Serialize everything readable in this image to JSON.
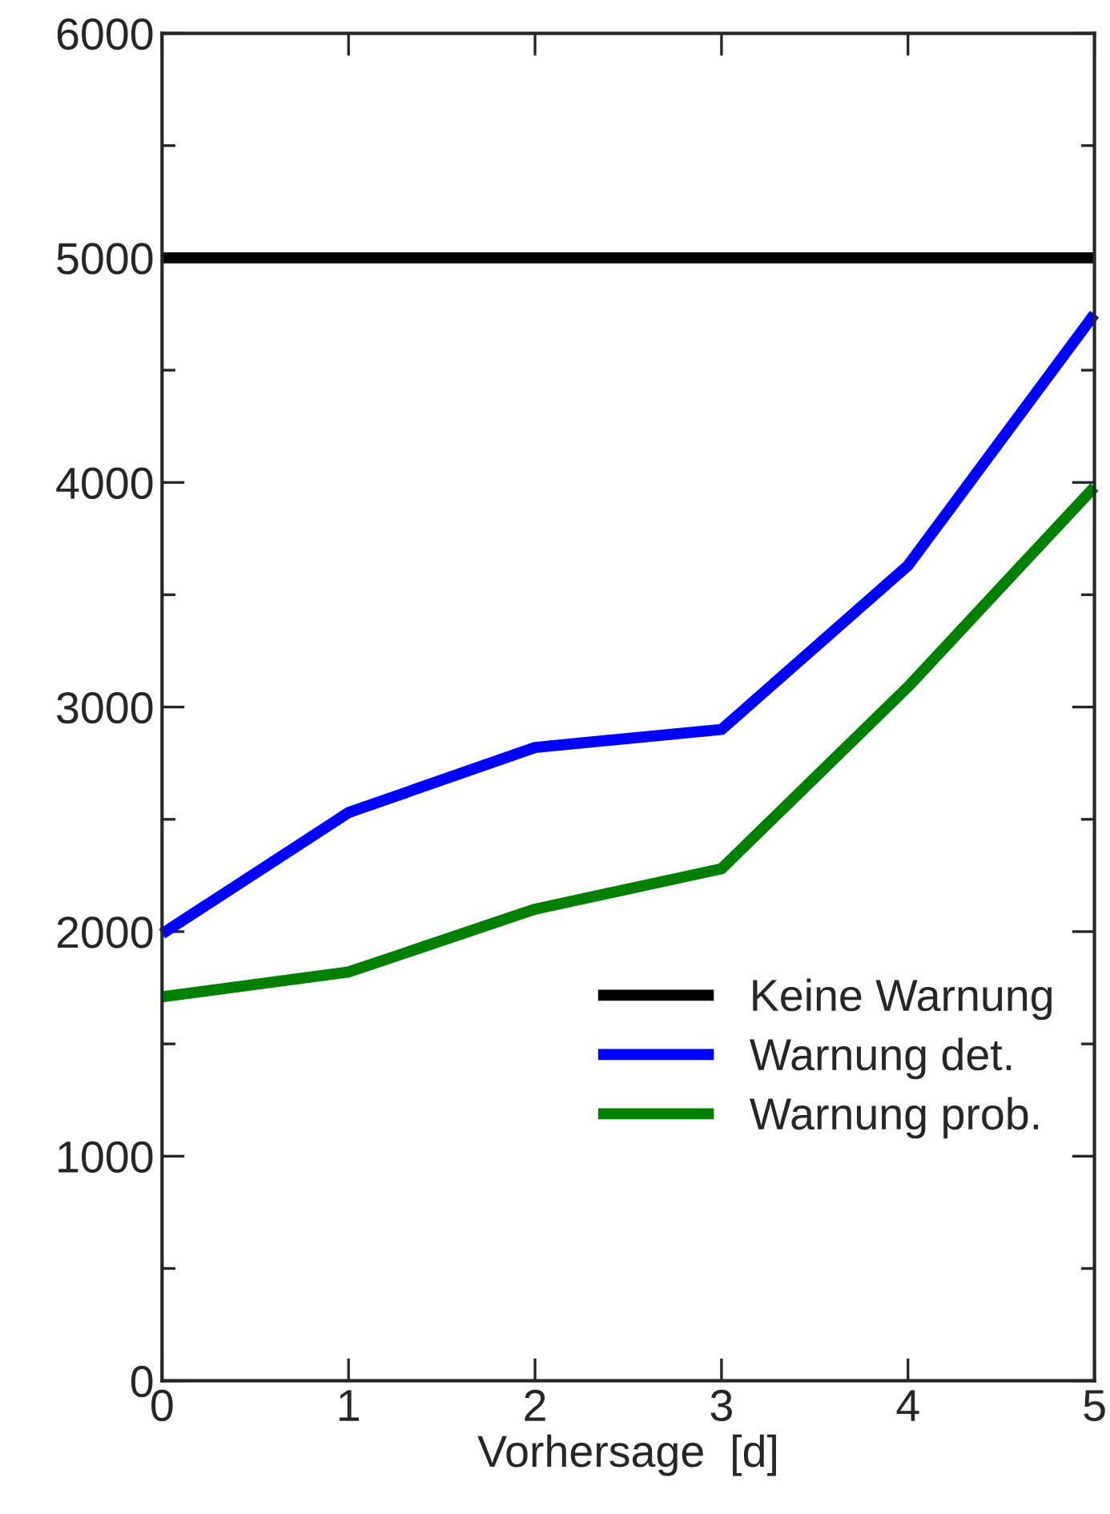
{
  "chart_data": {
    "type": "line",
    "xlabel": "Vorhersage  [d]",
    "x": [
      0,
      1,
      2,
      3,
      4,
      5
    ],
    "series": [
      {
        "name": "Keine Warnung",
        "color": "#000000",
        "values": [
          5000,
          5000,
          5000,
          5000,
          5000,
          5000
        ]
      },
      {
        "name": "Warnung det.",
        "color": "#0000ff",
        "values": [
          1990,
          2530,
          2820,
          2900,
          3630,
          4750
        ]
      },
      {
        "name": "Warnung prob.",
        "color": "#008000",
        "values": [
          1710,
          1820,
          2100,
          2280,
          3090,
          3980
        ]
      }
    ],
    "xlim": [
      0,
      5
    ],
    "xticks": [
      0,
      1,
      2,
      3,
      4,
      5
    ],
    "ylim": [
      0,
      6000
    ],
    "yticks": [
      0,
      1000,
      2000,
      3000,
      4000,
      5000,
      6000
    ],
    "grid": false,
    "legend": "lower right",
    "line_style": "solid",
    "marker": "none"
  }
}
